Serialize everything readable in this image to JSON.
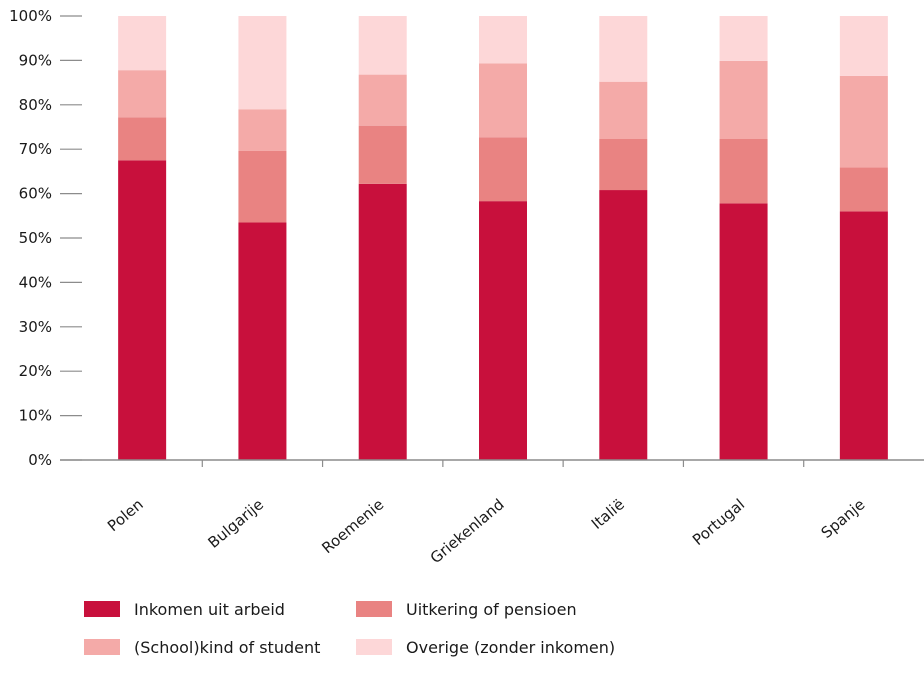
{
  "chart_data": {
    "type": "bar",
    "stacked": true,
    "categories": [
      "Polen",
      "Bulgarije",
      "Roemenie",
      "Griekenland",
      "Italië",
      "Portugal",
      "Spanje"
    ],
    "series": [
      {
        "name": "Inkomen uit arbeid",
        "color": "#c8103c",
        "values": [
          67.5,
          53.5,
          62.2,
          58.3,
          60.8,
          57.8,
          56.0
        ]
      },
      {
        "name": "Uitkering of pensioen",
        "color": "#e98382",
        "values": [
          9.7,
          16.1,
          13.1,
          14.4,
          11.5,
          14.5,
          9.9
        ]
      },
      {
        "name": "(School)kind of student",
        "color": "#f4aaa8",
        "values": [
          10.6,
          9.4,
          11.5,
          16.6,
          12.9,
          17.6,
          20.6
        ]
      },
      {
        "name": "Overige (zonder inkomen)",
        "color": "#fdd7d8",
        "values": [
          12.2,
          21.0,
          13.2,
          10.7,
          14.8,
          10.1,
          13.5
        ]
      }
    ],
    "ylim": [
      0,
      100
    ],
    "yticks": [
      "0%",
      "10%",
      "20%",
      "30%",
      "40%",
      "50%",
      "60%",
      "70%",
      "80%",
      "90%",
      "100%"
    ],
    "legend_position": "bottom",
    "legend_order": [
      0,
      2,
      1,
      3
    ],
    "grid": false,
    "axis_color": "#8c8c8c"
  }
}
